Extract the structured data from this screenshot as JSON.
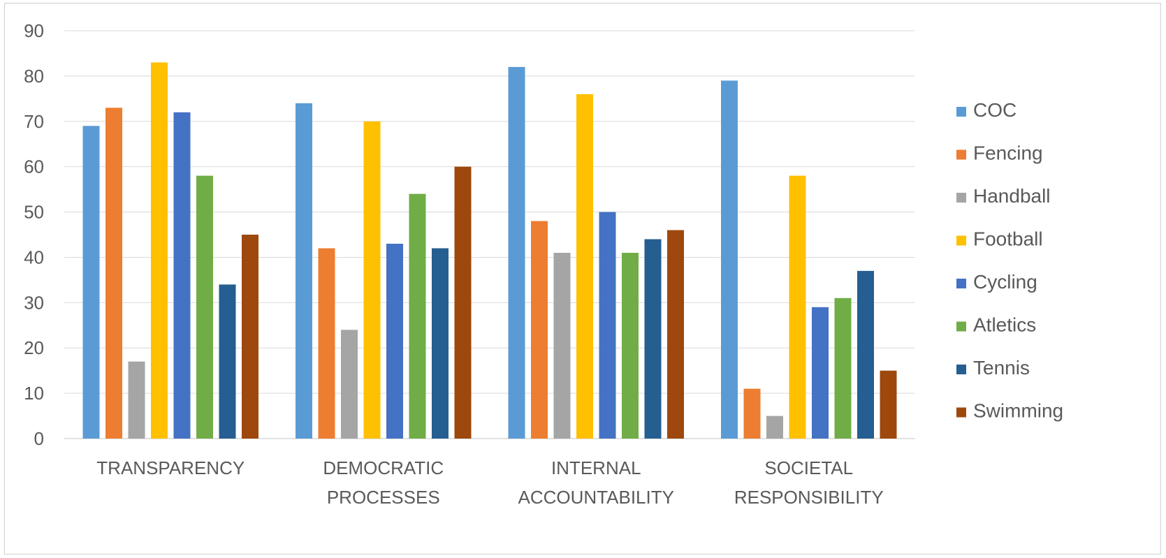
{
  "chart_data": {
    "type": "bar",
    "categories": [
      [
        "TRANSPARENCY"
      ],
      [
        "DEMOCRATIC",
        "PROCESSES"
      ],
      [
        "INTERNAL",
        "ACCOUNTABILITY"
      ],
      [
        "SOCIETAL",
        "RESPONSIBILITY"
      ]
    ],
    "series": [
      {
        "name": "COC",
        "color": "#5b9bd5",
        "values": [
          69,
          74,
          82,
          79
        ]
      },
      {
        "name": "Fencing",
        "color": "#ed7d31",
        "values": [
          73,
          42,
          48,
          11
        ]
      },
      {
        "name": "Handball",
        "color": "#a5a5a5",
        "values": [
          17,
          24,
          41,
          5
        ]
      },
      {
        "name": "Football",
        "color": "#ffc000",
        "values": [
          83,
          70,
          76,
          58
        ]
      },
      {
        "name": "Cycling",
        "color": "#4472c4",
        "values": [
          72,
          43,
          50,
          29
        ]
      },
      {
        "name": "Atletics",
        "color": "#70ad47",
        "values": [
          58,
          54,
          41,
          31
        ]
      },
      {
        "name": "Tennis",
        "color": "#255e91",
        "values": [
          34,
          42,
          44,
          37
        ]
      },
      {
        "name": "Swimming",
        "color": "#9e480e",
        "values": [
          45,
          60,
          46,
          15
        ]
      }
    ],
    "yticks": [
      "0",
      "10",
      "20",
      "30",
      "40",
      "50",
      "60",
      "70",
      "80",
      "90"
    ],
    "ylim": [
      0,
      90
    ],
    "grid": true,
    "legend_position": "right",
    "gridline_color": "#d9d9d9"
  }
}
